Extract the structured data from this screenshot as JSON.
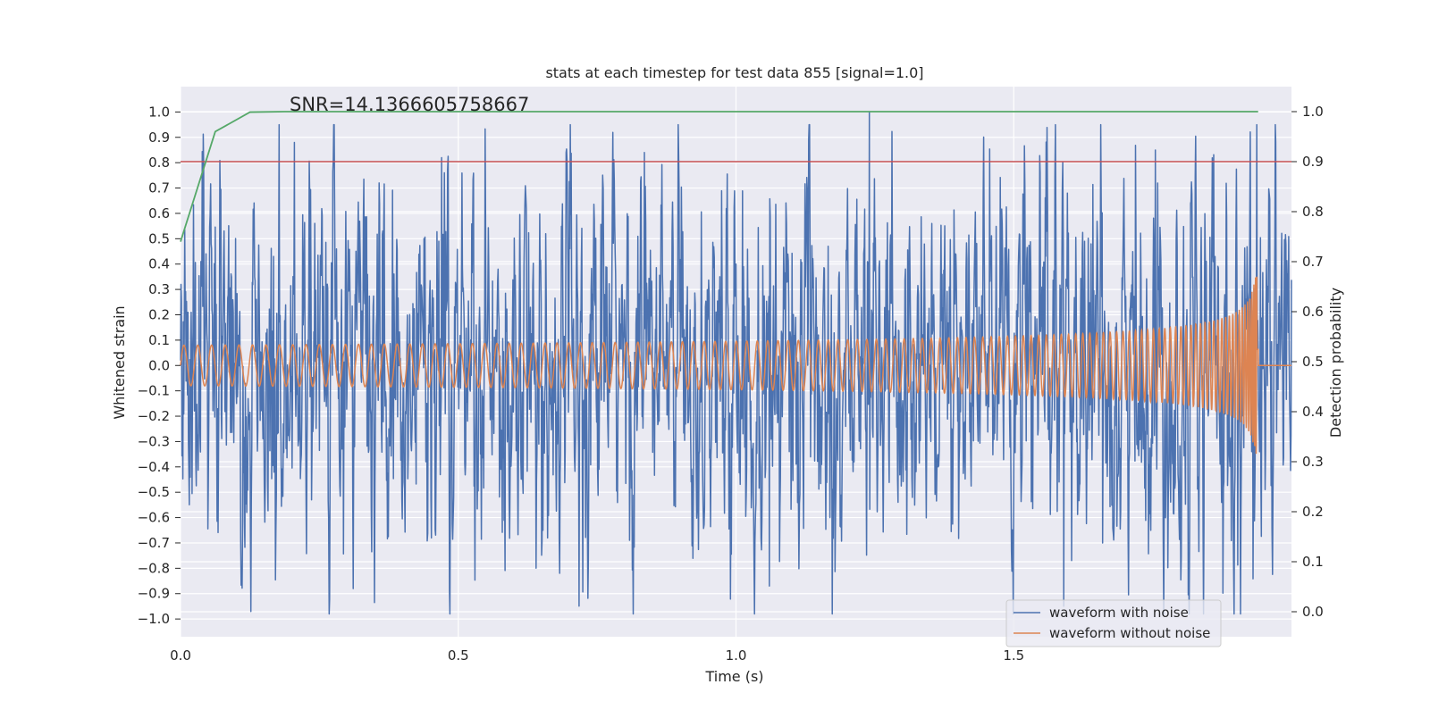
{
  "chart_data": {
    "type": "line",
    "title": "stats at each timestep for test data 855 [signal=1.0]",
    "annotation": "SNR=14.1366605758667",
    "xlabel": "Time (s)",
    "ylabel_left": "Whitened strain",
    "ylabel_right": "Detection probability",
    "xlim": [
      0.0,
      2.0
    ],
    "ylim_left": [
      -1.07,
      1.1
    ],
    "ylim_right": [
      -0.05,
      1.05
    ],
    "x_ticks": [
      0.0,
      0.5,
      1.0,
      1.5
    ],
    "x_tick_labels": [
      "0.0",
      "0.5",
      "1.0",
      "1.5"
    ],
    "y_left_ticks": [
      1.0,
      0.9,
      0.8,
      0.7,
      0.6,
      0.5,
      0.4,
      0.3,
      0.2,
      0.1,
      0.0,
      -0.1,
      -0.2,
      -0.3,
      -0.4,
      -0.5,
      -0.6,
      -0.7,
      -0.8,
      -0.9,
      -1.0
    ],
    "y_left_tick_labels": [
      "1.0",
      "0.9",
      "0.8",
      "0.7",
      "0.6",
      "0.5",
      "0.4",
      "0.3",
      "0.2",
      "0.1",
      "0.0",
      "−0.1",
      "−0.2",
      "−0.3",
      "−0.4",
      "−0.5",
      "−0.6",
      "−0.7",
      "−0.8",
      "−0.9",
      "−1.0"
    ],
    "y_right_ticks": [
      1.0,
      0.9,
      0.8,
      0.7,
      0.6,
      0.5,
      0.4,
      0.3,
      0.2,
      0.1,
      0.0
    ],
    "y_right_tick_labels": [
      "1.0",
      "0.9",
      "0.8",
      "0.7",
      "0.6",
      "0.5",
      "0.4",
      "0.3",
      "0.2",
      "0.1",
      "0.0"
    ],
    "legend_position": "lower-right",
    "series": [
      {
        "name": "waveform with noise",
        "axis": "left",
        "color": "#4c72b0",
        "kind": "noisy-strain",
        "x_range": [
          0.0,
          2.0
        ],
        "amplitude_std": 0.3,
        "peaks": [
          {
            "x": 0.205,
            "y": 0.88
          },
          {
            "x": 0.47,
            "y": 0.82
          },
          {
            "x": 0.835,
            "y": 0.84
          },
          {
            "x": 1.24,
            "y": 1.0
          },
          {
            "x": 1.755,
            "y": 0.85
          },
          {
            "x": 1.59,
            "y": -0.95
          },
          {
            "x": 1.06,
            "y": -0.87
          },
          {
            "x": 0.11,
            "y": -0.83
          }
        ]
      },
      {
        "name": "waveform without noise",
        "axis": "left",
        "color": "#dd8452",
        "kind": "chirp",
        "x_range": [
          0.0,
          1.95
        ],
        "start_amplitude": 0.08,
        "peak_amplitude": 0.37,
        "merger_x": 1.94,
        "start_cycles_per_second": 40
      },
      {
        "name": "detection probability",
        "axis": "right",
        "color": "#55a868",
        "x": [
          0.0,
          0.0625,
          0.125,
          0.1875,
          0.25,
          0.5,
          1.0,
          1.5,
          1.94
        ],
        "y": [
          0.74,
          0.96,
          0.999,
          1.0,
          1.0,
          1.0,
          1.0,
          1.0,
          1.0
        ]
      },
      {
        "name": "threshold",
        "axis": "right",
        "color": "#c44e52",
        "x": [
          0.0,
          2.0
        ],
        "y": [
          0.9,
          0.9
        ]
      }
    ],
    "legend": [
      {
        "label": "waveform with noise",
        "color": "#4c72b0"
      },
      {
        "label": "waveform without noise",
        "color": "#dd8452"
      }
    ],
    "style": {
      "axes_bg": "#eaeaf2",
      "grid_color": "#ffffff"
    }
  }
}
